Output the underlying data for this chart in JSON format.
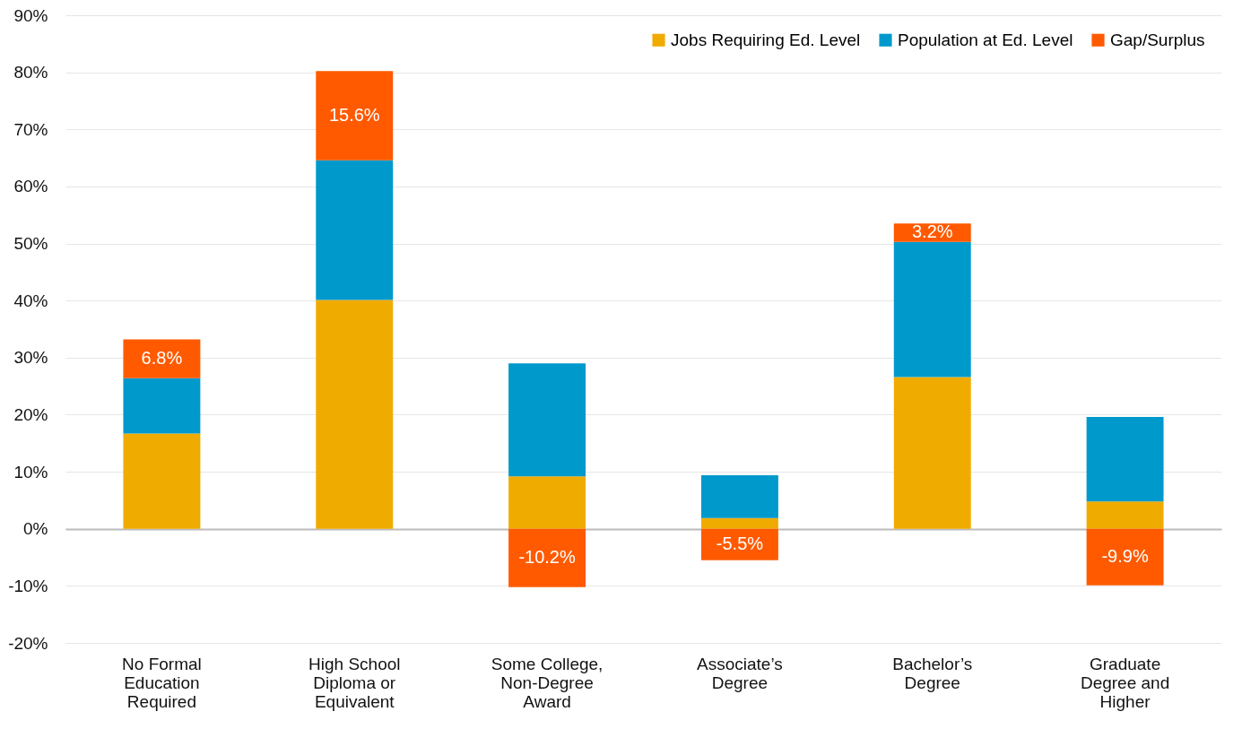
{
  "chart_data": {
    "type": "bar",
    "stacked": true,
    "categories": [
      "No Formal\nEducation\nRequired",
      "High School\nDiploma or\nEquivalent",
      "Some College,\nNon-Degree\nAward",
      "Associate’s\nDegree",
      "Bachelor’s\nDegree",
      "Graduate\nDegree and\nHigher"
    ],
    "series": [
      {
        "name": "Jobs Requiring Ed. Level",
        "color": "#f0ab00",
        "values": [
          16.7,
          40.1,
          9.2,
          1.9,
          26.6,
          4.8
        ]
      },
      {
        "name": "Population at Ed. Level",
        "color": "#0099cc",
        "values": [
          9.7,
          24.5,
          19.8,
          7.5,
          23.7,
          14.8
        ]
      },
      {
        "name": "Gap/Surplus",
        "color": "#ff5a00",
        "values": [
          6.8,
          15.6,
          -10.2,
          -5.5,
          3.2,
          -9.9
        ],
        "value_labels": [
          "6.8%",
          "15.6%",
          "-10.2%",
          "-5.5%",
          "3.2%",
          "-9.9%"
        ]
      }
    ],
    "ylim": [
      -20,
      90
    ],
    "yticks": [
      {
        "value": -20,
        "label": "-20%"
      },
      {
        "value": -10,
        "label": "-10%"
      },
      {
        "value": 0,
        "label": "0%"
      },
      {
        "value": 10,
        "label": "10%"
      },
      {
        "value": 20,
        "label": "20%"
      },
      {
        "value": 30,
        "label": "30%"
      },
      {
        "value": 40,
        "label": "40%"
      },
      {
        "value": 50,
        "label": "50%"
      },
      {
        "value": 60,
        "label": "60%"
      },
      {
        "value": 70,
        "label": "70%"
      },
      {
        "value": 80,
        "label": "80%"
      },
      {
        "value": 90,
        "label": "90%"
      }
    ],
    "grid": "y",
    "legend": "top right"
  }
}
